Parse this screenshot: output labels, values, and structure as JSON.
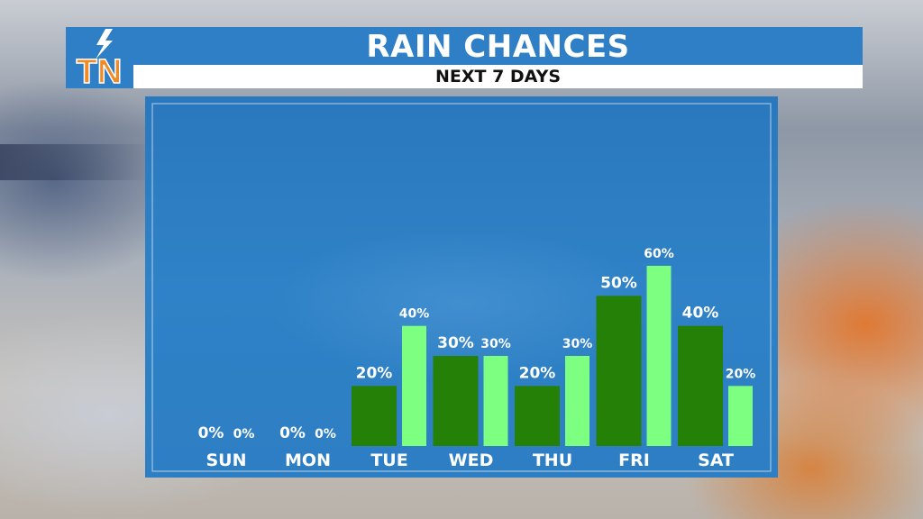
{
  "title": "RAIN CHANCES",
  "subtitle": "NEXT 7 DAYS",
  "logo": {
    "text": "TN",
    "icon": "lightning-bolt-icon"
  },
  "colors": {
    "header": "#2f7fc6",
    "panel": "#2d7ec3",
    "day_bar": "#248007",
    "night_bar": "#7dff81",
    "logo_orange": "#f08a24",
    "logo_blue": "#2f7fc6",
    "text": "#ffffff"
  },
  "chart_data": {
    "type": "bar",
    "categories": [
      "SUN",
      "MON",
      "TUE",
      "WED",
      "THU",
      "FRI",
      "SAT"
    ],
    "series": [
      {
        "values": [
          0,
          0,
          20,
          30,
          20,
          50,
          40
        ],
        "labels": [
          "0%",
          "0%",
          "20%",
          "30%",
          "20%",
          "50%",
          "40%"
        ]
      },
      {
        "values": [
          0,
          0,
          40,
          30,
          30,
          60,
          20
        ],
        "labels": [
          "0%",
          "0%",
          "40%",
          "30%",
          "30%",
          "60%",
          "20%"
        ]
      }
    ],
    "ylim": [
      0,
      60
    ],
    "grid": false,
    "legend": "none"
  }
}
